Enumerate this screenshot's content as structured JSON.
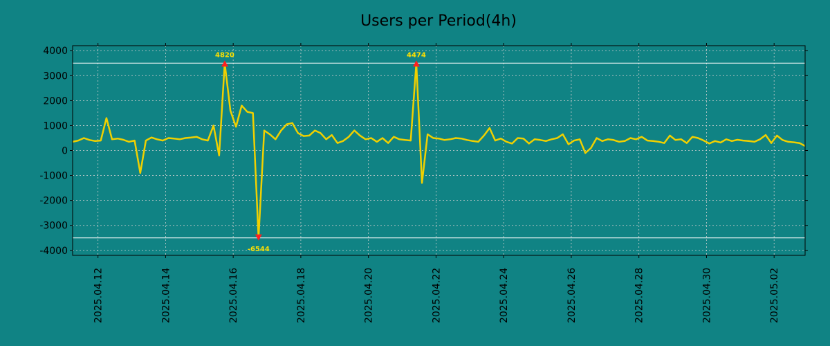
{
  "chart_data": {
    "type": "line",
    "title": "Users per Period(4h)",
    "xlabel": "",
    "ylabel": "",
    "ylim": [
      -4200,
      4200
    ],
    "xlim": [
      0,
      130
    ],
    "grid": true,
    "x_ticks": [
      {
        "x": 4.5,
        "label": "2025.04.12"
      },
      {
        "x": 16.5,
        "label": "2025.04.14"
      },
      {
        "x": 28.5,
        "label": "2025.04.16"
      },
      {
        "x": 40.5,
        "label": "2025.04.18"
      },
      {
        "x": 52.5,
        "label": "2025.04.20"
      },
      {
        "x": 64.5,
        "label": "2025.04.22"
      },
      {
        "x": 76.5,
        "label": "2025.04.24"
      },
      {
        "x": 88.5,
        "label": "2025.04.26"
      },
      {
        "x": 100.5,
        "label": "2025.04.28"
      },
      {
        "x": 112.5,
        "label": "2025.04.30"
      },
      {
        "x": 124.5,
        "label": "2025.05.02"
      }
    ],
    "y_ticks": [
      4000,
      3000,
      2000,
      1000,
      0,
      -1000,
      -2000,
      -3000,
      -4000
    ],
    "y_tick_labels": [
      "4000",
      "3000",
      "2000",
      "1000",
      "0",
      "-1000",
      "-2000",
      "-3000",
      "-4000"
    ],
    "thresholds": [
      3500,
      -3500
    ],
    "series": [
      {
        "name": "Users",
        "color": "#f0d000",
        "values": [
          350,
          400,
          500,
          420,
          380,
          400,
          1300,
          450,
          480,
          430,
          350,
          400,
          -900,
          400,
          520,
          450,
          400,
          500,
          480,
          450,
          500,
          520,
          550,
          450,
          400,
          1000,
          -200,
          3500,
          1600,
          950,
          1800,
          1550,
          1500,
          -3500,
          800,
          650,
          450,
          800,
          1050,
          1100,
          700,
          580,
          600,
          800,
          700,
          450,
          620,
          300,
          380,
          550,
          800,
          600,
          450,
          500,
          350,
          500,
          300,
          550,
          450,
          420,
          400,
          3500,
          -1300,
          650,
          500,
          480,
          420,
          450,
          500,
          480,
          420,
          380,
          350,
          600,
          900,
          400,
          480,
          350,
          280,
          500,
          480,
          280,
          450,
          420,
          380,
          450,
          500,
          650,
          250,
          400,
          450,
          -100,
          100,
          500,
          380,
          450,
          420,
          350,
          380,
          500,
          450,
          550,
          400,
          380,
          350,
          300,
          600,
          420,
          450,
          300,
          550,
          500,
          400,
          280,
          380,
          320,
          450,
          380,
          430,
          400,
          380,
          350,
          450,
          620,
          300,
          600,
          420,
          350,
          330,
          300,
          180
        ]
      }
    ],
    "annotations": [
      {
        "x": 27,
        "y": 3500,
        "text": "4820",
        "marker": "up"
      },
      {
        "x": 33,
        "y": -3500,
        "text": "-6544",
        "marker": "down"
      },
      {
        "x": 61,
        "y": 3500,
        "text": "4474",
        "marker": "up"
      }
    ]
  }
}
